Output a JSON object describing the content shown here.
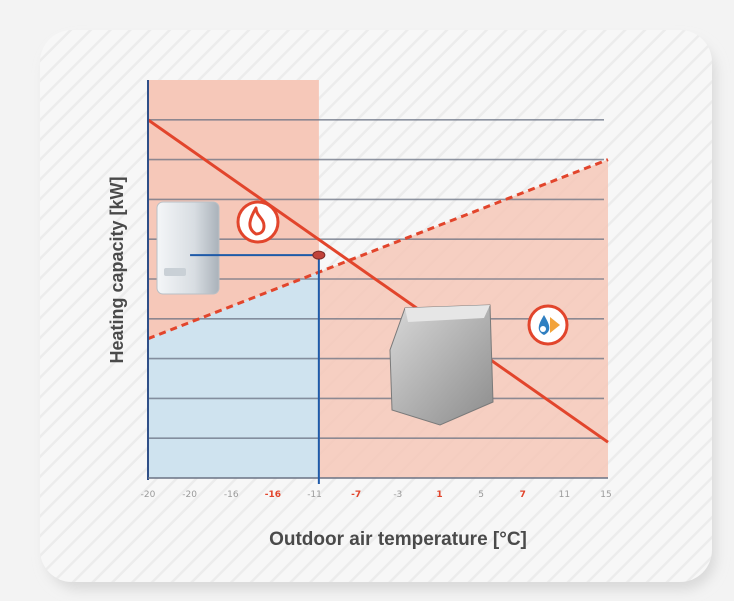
{
  "chart_data": {
    "type": "line",
    "title": "",
    "xlabel": "Outdoor air temperature [°C]",
    "ylabel": "Heating capacity [kW]",
    "x_ticks": [
      "-20",
      "-20",
      "-16",
      "-16",
      "-11",
      "-7",
      "-3",
      "1",
      "5",
      "7",
      "11",
      "15"
    ],
    "highlighted_ticks": [
      "-16",
      "-7",
      "1",
      "7"
    ],
    "xlim": [
      -20,
      15
    ],
    "ylim": [
      0,
      10
    ],
    "grid": true,
    "bivalence_point": {
      "x": -7,
      "y": 5.6
    },
    "series": [
      {
        "style": "solid",
        "color": "#e2452c",
        "x": [
          -20,
          15
        ],
        "y": [
          9.0,
          0.9
        ]
      },
      {
        "style": "dashed",
        "color": "#e2452c",
        "x": [
          -20,
          15
        ],
        "y": [
          3.5,
          8.0
        ]
      }
    ],
    "regions": [
      {
        "meaning": "boiler heating zone",
        "color": "#f6c8b9"
      },
      {
        "meaning": "heat pump heating zone",
        "color": "#cfe3ef"
      }
    ],
    "icons": [
      "boiler-unit-icon",
      "flame-icon",
      "heat-pump-unit-icon",
      "heat-pump-badge-icon"
    ]
  }
}
